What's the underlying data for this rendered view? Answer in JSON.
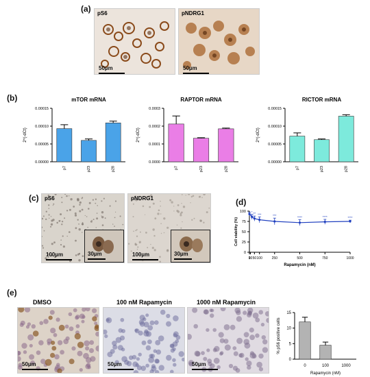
{
  "panels": {
    "a": {
      "label": "(a)",
      "images": [
        {
          "label": "pS6",
          "scale": "50µm"
        },
        {
          "label": "pNDRG1",
          "scale": "50µm"
        }
      ]
    },
    "b": {
      "label": "(b)"
    },
    "c": {
      "label": "(c)",
      "images": [
        {
          "label": "pS6",
          "scale": "100µm",
          "inset_scale": "30µm"
        },
        {
          "label": "pNDRG1",
          "scale": "100µm",
          "inset_scale": "30µm"
        }
      ]
    },
    "d": {
      "label": "(d)"
    },
    "e": {
      "label": "(e)",
      "images": [
        {
          "label": "DMSO",
          "scale": "50µm"
        },
        {
          "label": "100 nM Rapamycin",
          "scale": "50µm"
        },
        {
          "label": "1000 nM Rapamycin",
          "scale": "50µm"
        }
      ]
    }
  },
  "chart_data": [
    {
      "id": "mtor",
      "type": "bar",
      "title": "mTOR mRNA",
      "ylabel": "2^(-dCt)",
      "xlabel": "",
      "categories": [
        "p7",
        "p23",
        "p28"
      ],
      "values": [
        9.3e-05,
        6e-05,
        0.000109
      ],
      "errors": [
        1.1e-05,
        4e-06,
        5e-06
      ],
      "ylim": [
        0,
        0.00015
      ],
      "yticks": [
        "0.00000",
        "0.00005",
        "0.00010",
        "0.00015"
      ],
      "color": "#4aa3e8"
    },
    {
      "id": "raptor",
      "type": "bar",
      "title": "RAPTOR mRNA",
      "ylabel": "2^(-dCt)",
      "xlabel": "",
      "categories": [
        "p7",
        "p23",
        "p28"
      ],
      "values": [
        0.000212,
        0.000132,
        0.000185
      ],
      "errors": [
        4.5e-05,
        3e-06,
        4e-06
      ],
      "ylim": [
        0,
        0.0003
      ],
      "yticks": [
        "0.0000",
        "0.0001",
        "0.0002",
        "0.0003"
      ],
      "color": "#ea7ee6"
    },
    {
      "id": "rictor",
      "type": "bar",
      "title": "RICTOR mRNA",
      "ylabel": "2^(-dCt)",
      "xlabel": "",
      "categories": [
        "p7",
        "p23",
        "p28"
      ],
      "values": [
        7.2e-05,
        6.2e-05,
        0.000128
      ],
      "errors": [
        9e-06,
        2e-06,
        4e-06
      ],
      "ylim": [
        0,
        0.00015
      ],
      "yticks": [
        "0.00000",
        "0.00005",
        "0.00010",
        "0.00015"
      ],
      "color": "#7deadc"
    },
    {
      "id": "viability",
      "type": "line",
      "title": "",
      "xlabel": "Rapamycin (nM)",
      "ylabel": "Cell viability (%)",
      "x": [
        0,
        25,
        50,
        100,
        250,
        500,
        750,
        1000
      ],
      "y": [
        93,
        86,
        82,
        79,
        75,
        72,
        74,
        75
      ],
      "errors": [
        4,
        6,
        6,
        7,
        8,
        7,
        6,
        3
      ],
      "annotations": [
        "",
        "*",
        "**",
        "***",
        "***",
        "****",
        "****",
        "****"
      ],
      "xlim": [
        0,
        1000
      ],
      "ylim": [
        0,
        100
      ],
      "xticks": [
        0,
        10,
        50,
        100,
        250,
        500,
        750,
        1000
      ],
      "yticks": [
        0,
        25,
        50,
        75,
        100
      ],
      "color": "#1f3fbf"
    },
    {
      "id": "ps6pos",
      "type": "bar",
      "title": "",
      "xlabel": "Rapamycin (nM)",
      "ylabel": "% pS6 positive cells",
      "categories": [
        "0",
        "100",
        "1000"
      ],
      "values": [
        12,
        4.5,
        0
      ],
      "errors": [
        1.5,
        1.0,
        0
      ],
      "ylim": [
        0,
        15
      ],
      "yticks": [
        0,
        5,
        10,
        15
      ],
      "color": "#b3b3b3"
    }
  ]
}
